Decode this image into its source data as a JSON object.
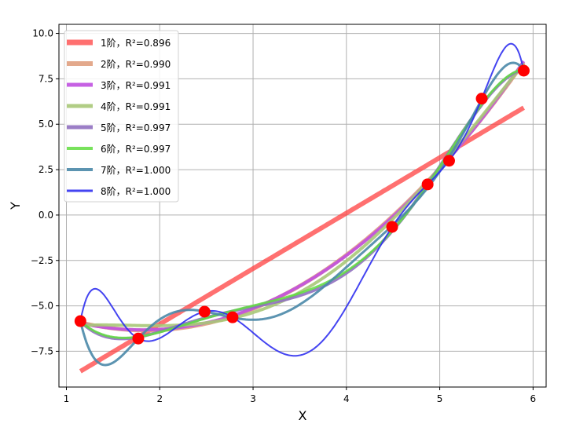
{
  "chart_data": {
    "type": "line",
    "title": "",
    "xlabel": "X",
    "ylabel": "Y",
    "xlim": [
      0.92,
      6.14
    ],
    "ylim": [
      -9.47,
      10.5
    ],
    "grid": true,
    "legend_placement": "top-left",
    "xticks": [
      "1",
      "2",
      "3",
      "4",
      "5",
      "6"
    ],
    "xtick_values": [
      1,
      2,
      3,
      4,
      5,
      6
    ],
    "yticks": [
      "10.0",
      "7.5",
      "5.0",
      "2.5",
      "0.0",
      "−2.5",
      "−5.0",
      "−7.5"
    ],
    "ytick_values": [
      10,
      7.5,
      5,
      2.5,
      0,
      -2.5,
      -5,
      -7.5
    ],
    "points": {
      "x": [
        1.15,
        1.77,
        2.48,
        2.78,
        4.49,
        4.87,
        5.1,
        5.45,
        5.9
      ],
      "y": [
        -5.84,
        -6.8,
        -5.32,
        -5.63,
        -0.65,
        1.69,
        2.99,
        6.41,
        7.95
      ],
      "color": "#ff0000"
    },
    "series": [
      {
        "name": "1阶",
        "degree": 1,
        "r2": "0.896",
        "color": "#ff4040",
        "alpha": 0.75
      },
      {
        "name": "2阶",
        "degree": 2,
        "r2": "0.990",
        "color": "#e0a080",
        "alpha": 0.9
      },
      {
        "name": "3阶",
        "degree": 3,
        "r2": "0.991",
        "color": "#c050e0",
        "alpha": 0.9
      },
      {
        "name": "4阶",
        "degree": 4,
        "r2": "0.991",
        "color": "#a8c878",
        "alpha": 0.9
      },
      {
        "name": "5阶",
        "degree": 5,
        "r2": "0.997",
        "color": "#9070c0",
        "alpha": 0.9
      },
      {
        "name": "6阶",
        "degree": 6,
        "r2": "0.997",
        "color": "#60dd40",
        "alpha": 0.85
      },
      {
        "name": "7阶",
        "degree": 7,
        "r2": "1.000",
        "color": "#4a88a8",
        "alpha": 0.9
      },
      {
        "name": "8阶",
        "degree": 8,
        "r2": "1.000",
        "color": "#3030f0",
        "alpha": 0.9
      }
    ],
    "legend_label_format": "，R²="
  }
}
